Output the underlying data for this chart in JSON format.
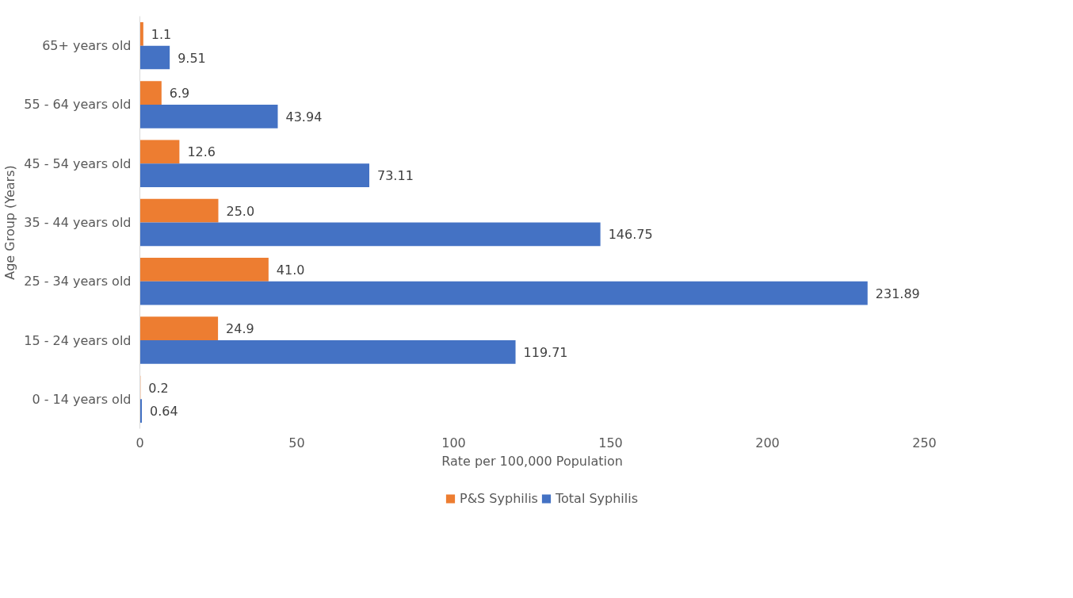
{
  "chart_data": {
    "type": "bar",
    "orientation": "horizontal",
    "xlabel": "Rate per 100,000 Population",
    "ylabel": "Age Group (Years)",
    "categories": [
      "65+ years old",
      "55 - 64 years old",
      "45 - 54 years old",
      "35 - 44 years old",
      "25 - 34 years old",
      "15 - 24 years old",
      "0 - 14 years old"
    ],
    "series": [
      {
        "name": "P&S Syphilis",
        "color": "#ed7d31",
        "values": [
          1.1,
          6.9,
          12.6,
          25.0,
          41.0,
          24.9,
          0.2
        ],
        "value_labels": [
          "1.1",
          "6.9",
          "12.6",
          "25.0",
          "41.0",
          "24.9",
          "0.2"
        ]
      },
      {
        "name": "Total Syphilis",
        "color": "#4472c4",
        "values": [
          9.51,
          43.94,
          73.11,
          146.75,
          231.89,
          119.71,
          0.64
        ],
        "value_labels": [
          "9.51",
          "43.94",
          "73.11",
          "146.75",
          "231.89",
          "119.71",
          "0.64"
        ]
      }
    ],
    "xlim": [
      0,
      250
    ],
    "xticks": [
      0,
      50,
      100,
      150,
      200,
      250
    ],
    "grid": false,
    "legend": "bottom"
  }
}
